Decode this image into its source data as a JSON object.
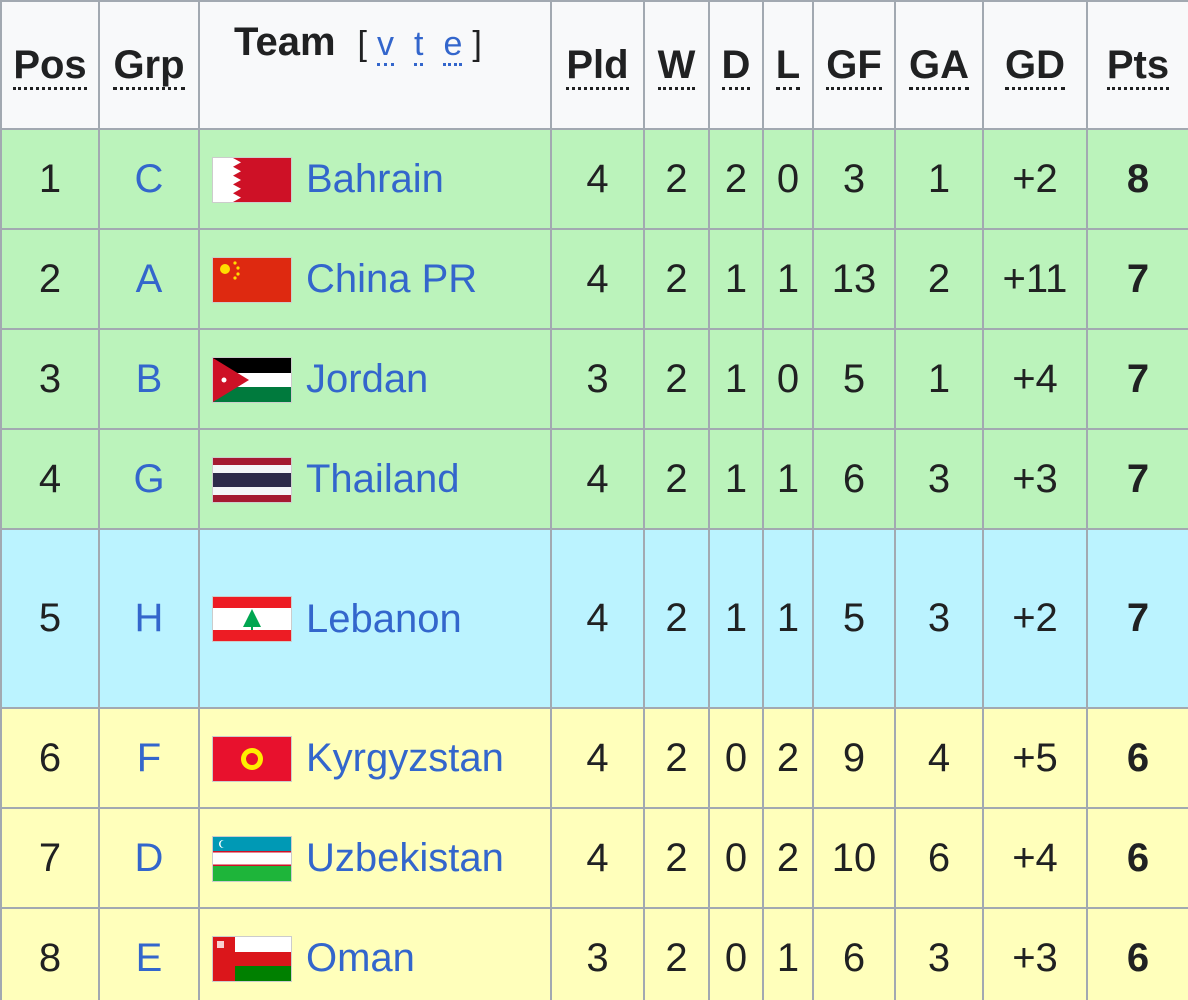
{
  "table": {
    "header": [
      "Pos",
      "Grp",
      "Team",
      "Pld",
      "W",
      "D",
      "L",
      "GF",
      "GA",
      "GD",
      "Pts"
    ],
    "vte": {
      "open": "[",
      "links": [
        "v",
        "t",
        "e"
      ],
      "close": "]"
    },
    "rows": [
      [
        "1",
        "C",
        "Bahrain",
        "4",
        "2",
        "2",
        "0",
        "3",
        "1",
        "+2",
        "8"
      ],
      [
        "2",
        "A",
        "China PR",
        "4",
        "2",
        "1",
        "1",
        "13",
        "2",
        "+11",
        "7"
      ],
      [
        "3",
        "B",
        "Jordan",
        "3",
        "2",
        "1",
        "0",
        "5",
        "1",
        "+4",
        "7"
      ],
      [
        "4",
        "G",
        "Thailand",
        "4",
        "2",
        "1",
        "1",
        "6",
        "3",
        "+3",
        "7"
      ],
      [
        "5",
        "H",
        "Lebanon",
        "4",
        "2",
        "1",
        "1",
        "5",
        "3",
        "+2",
        "7"
      ],
      [
        "6",
        "F",
        "Kyrgyzstan",
        "4",
        "2",
        "0",
        "2",
        "9",
        "4",
        "+5",
        "6"
      ],
      [
        "7",
        "D",
        "Uzbekistan",
        "4",
        "2",
        "0",
        "2",
        "10",
        "6",
        "+4",
        "6"
      ],
      [
        "8",
        "E",
        "Oman",
        "3",
        "2",
        "0",
        "1",
        "6",
        "3",
        "+3",
        "6"
      ]
    ]
  }
}
